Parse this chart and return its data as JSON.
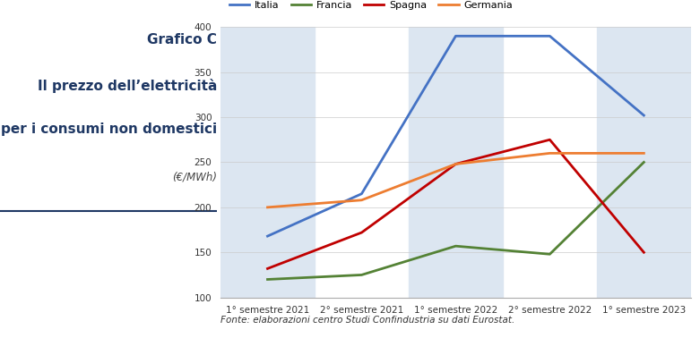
{
  "title_line1": "Grafico C",
  "title_line2": "Il prezzo dell’elettricità",
  "title_line3": "per i consumi non domestici",
  "subtitle": "(€/MWh)",
  "footnote": "Fonte: elaborazioni centro Studi Confindustria su dati Eurostat.",
  "x_labels": [
    "1° semestre 2021",
    "2° semestre 2021",
    "1° semestre 2022",
    "2° semestre 2022",
    "1° semestre 2023"
  ],
  "series": [
    {
      "name": "Italia",
      "color": "#4472C4",
      "values": [
        168,
        215,
        390,
        390,
        302
      ]
    },
    {
      "name": "Francia",
      "color": "#548235",
      "values": [
        120,
        125,
        157,
        148,
        250
      ]
    },
    {
      "name": "Spagna",
      "color": "#C00000",
      "values": [
        132,
        172,
        248,
        275,
        150
      ]
    },
    {
      "name": "Germania",
      "color": "#ED7D31",
      "values": [
        200,
        208,
        248,
        260,
        260
      ]
    }
  ],
  "ylim": [
    100,
    400
  ],
  "yticks": [
    100,
    150,
    200,
    250,
    300,
    350,
    400
  ],
  "background_color": "#ffffff",
  "plot_bg_color": "#ffffff",
  "band_color": "#dce6f1",
  "shaded_bands": [
    0,
    2,
    4
  ],
  "title_color": "#1F3864",
  "grid_color": "#cccccc",
  "legend_fontsize": 8,
  "tick_fontsize": 7.5
}
